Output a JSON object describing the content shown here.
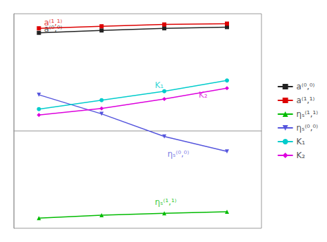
{
  "chart_data": {
    "type": "line",
    "x": [
      1,
      2,
      3,
      4
    ],
    "series": [
      {
        "name": "a⁽⁰,⁰⁾",
        "color": "#222222",
        "marker": "square",
        "line_style": "solid",
        "values": [
          0.82,
          0.84,
          0.858,
          0.868
        ]
      },
      {
        "name": "a⁽¹,¹⁾",
        "color": "#dd0000",
        "marker": "square",
        "line_style": "solid",
        "values": [
          0.858,
          0.875,
          0.89,
          0.897
        ]
      },
      {
        "name": "ηₛ⁽¹,¹⁾",
        "color": "#00bb00",
        "marker": "triangle_up",
        "line_style": "solid",
        "values": [
          -0.735,
          -0.71,
          -0.695,
          -0.682
        ]
      },
      {
        "name": "ηₛ⁽⁰,⁰⁾",
        "color": "#5555dd",
        "marker": "triangle_down",
        "line_style": "solid",
        "values": [
          0.3,
          0.14,
          -0.05,
          -0.175
        ]
      },
      {
        "name": "K₁",
        "color": "#00cccc",
        "marker": "circle",
        "line_style": "solid",
        "values": [
          0.18,
          0.255,
          0.33,
          0.42
        ]
      },
      {
        "name": "K₂",
        "color": "#dd00dd",
        "marker": "diamond",
        "line_style": "solid",
        "values": [
          0.13,
          0.185,
          0.265,
          0.355
        ]
      }
    ],
    "annotations": [
      {
        "text": "a⁽¹,¹⁾",
        "x": 1.08,
        "y": 0.87,
        "color": "#dd0000"
      },
      {
        "text": "a⁽⁰,⁰⁾",
        "x": 1.08,
        "y": 0.82,
        "color": "#222222"
      },
      {
        "text": "K₁",
        "x": 2.85,
        "y": 0.345,
        "color": "#00cccc"
      },
      {
        "text": "K₂",
        "x": 3.55,
        "y": 0.265,
        "color": "#dd00dd"
      },
      {
        "text": "ηₛ⁽⁰,⁰⁾",
        "x": 3.05,
        "y": -0.23,
        "color": "#5555dd"
      },
      {
        "text": "ηₛ⁽¹,¹⁾",
        "x": 2.85,
        "y": -0.635,
        "color": "#00bb00"
      }
    ],
    "xlim": [
      0.6,
      4.55
    ],
    "ylim": [
      -0.82,
      0.98
    ],
    "tick_labels": false,
    "grid": false,
    "legend": "right"
  }
}
